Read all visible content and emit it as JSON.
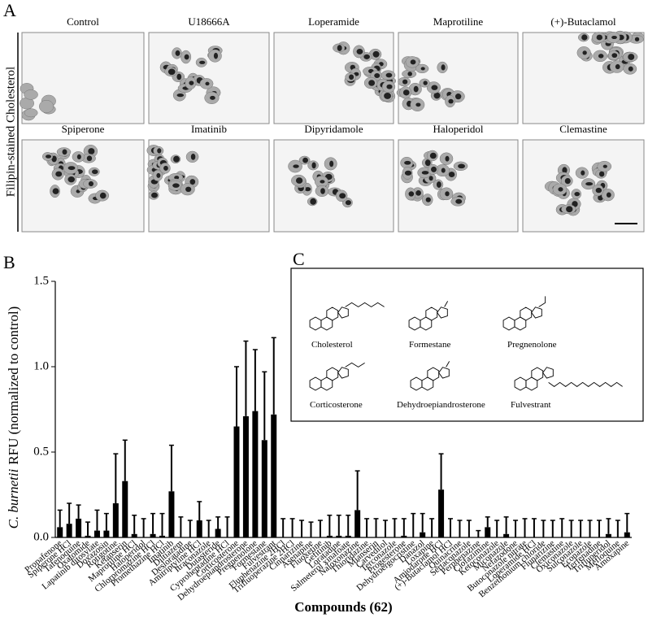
{
  "panel_letters": [
    "A",
    "B",
    "C"
  ],
  "panel_a": {
    "side_label": "Filipin-stained Cholesterol",
    "titles": [
      "Control",
      "U18666A",
      "Loperamide",
      "Maprotiline",
      "(+)-Butaclamol",
      "Spiperone",
      "Imatinib",
      "Dipyridamole",
      "Haloperidol",
      "Clemastine"
    ]
  },
  "chart_data": {
    "type": "bar",
    "ylabel_italic": "C. burnetii",
    "ylabel": "RFU (normalized to control)",
    "xlabel": "Compounds (62)",
    "ylim": [
      0,
      1.5
    ],
    "yticks": [
      {
        "value": 0,
        "label": "0.0"
      },
      0.5,
      {
        "value": 1,
        "label": "1.0"
      },
      1.5
    ],
    "color": "#000000",
    "categories": [
      "Propafenone",
      "Spiperone HCl",
      "Tafenoquine",
      "Oxatomide",
      "Lapatinib ditosylate",
      "Doxazosin",
      "Rotigotine",
      "Ketanserin",
      "Maprotiline HCl",
      "Haloperidol",
      "Chlorpromazine HCl",
      "Promethazine HCl",
      "Imatinib",
      "Diltiazem",
      "Desloratadine",
      "Amitriptyline HCl",
      "Itraconazole",
      "Dutasteride",
      "Cyproheptadine HCl",
      "Corticosterone",
      "Dehydroepiandrosterone",
      "Pregnenolone",
      "Formestane",
      "Fulvestrant",
      "Fluphenazine 2HCl",
      "Trifluoperazine 2HCl",
      "Cinnarizine",
      "Asenapine",
      "Fluoxetine",
      "Gefitinib",
      "Loratadine",
      "Salmeterol xinafoate",
      "Naloxonazine",
      "Thioridazine",
      "Mianserin",
      "Carvedilol",
      "Terconazole",
      "Progesterone",
      "Dehydroergocristine",
      "Danazol",
      "Loxapine",
      "Amiodarone HCl",
      "(+)-Butaclamol HCl",
      "Quinacrine",
      "Sertaconazole",
      "Perphenazine",
      "Clofazimine",
      "Ketoconazole",
      "Miconazole",
      "Nefazodone",
      "Butoconazole nitrate",
      "Loperamide HCl",
      "Benzethonium chloride",
      "Flunarizine",
      "Clemastine",
      "Oxiconazole",
      "Sulconazole",
      "Econazole",
      "Terfenadine",
      "Trifluperidol",
      "Mefloquine",
      "Amoxapine"
    ],
    "values": [
      0.06,
      0.08,
      0.11,
      0.01,
      0.04,
      0.04,
      0.2,
      0.33,
      0.02,
      0,
      0.02,
      0.01,
      0.27,
      0,
      0,
      0.1,
      0,
      0.05,
      0,
      0.65,
      0.71,
      0.74,
      0.57,
      0.72,
      0,
      0,
      0,
      0,
      0,
      0.01,
      0.01,
      0.01,
      0.16,
      0,
      0,
      0,
      0,
      0.01,
      0,
      0.03,
      0,
      0.28,
      0,
      0,
      0,
      0,
      0.06,
      0,
      0.02,
      0,
      0,
      0,
      0,
      0,
      0,
      0,
      0,
      0,
      0,
      0.02,
      0,
      0.03
    ],
    "errors": [
      0.1,
      0.12,
      0.08,
      0.08,
      0.12,
      0.1,
      0.29,
      0.24,
      0.11,
      0.11,
      0.12,
      0.13,
      0.27,
      0.12,
      0.1,
      0.11,
      0.1,
      0.07,
      0.12,
      0.35,
      0.44,
      0.36,
      0.4,
      0.45,
      0.11,
      0.11,
      0.1,
      0.09,
      0.1,
      0.12,
      0.12,
      0.12,
      0.23,
      0.11,
      0.11,
      0.1,
      0.11,
      0.1,
      0.14,
      0.11,
      0.11,
      0.21,
      0.11,
      0.1,
      0.1,
      0.04,
      0.06,
      0.1,
      0.1,
      0.1,
      0.11,
      0.11,
      0.1,
      0.1,
      0.11,
      0.1,
      0.1,
      0.1,
      0.1,
      0.09,
      0.1,
      0.11
    ]
  },
  "panel_c": {
    "names": [
      "Cholesterol",
      "Formestane",
      "Pregnenolone",
      "Corticosterone",
      "Dehydroepiandrosterone",
      "Fulvestrant"
    ]
  }
}
